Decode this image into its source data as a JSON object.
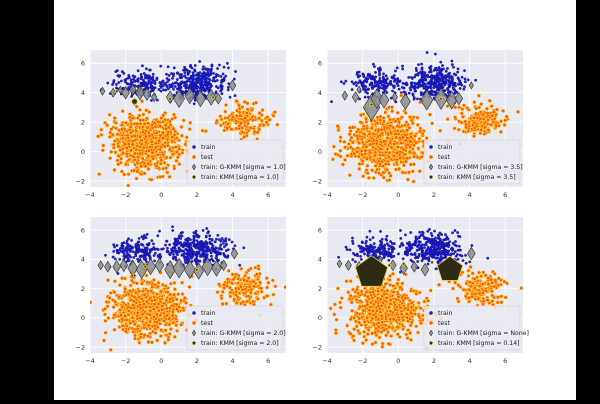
{
  "figure": {
    "background": "#ffffff",
    "letterbox": "#000000",
    "plot_background": "#eaeaf2",
    "grid_color": "#ffffff"
  },
  "colors": {
    "train": "#1f1fd6",
    "train_edge": "#0a0a7a",
    "test_face": "#ff5a00",
    "test_edge": "#ffd54a",
    "marker_fill": "#8c8c8c",
    "marker_edge": "#2a2a2a",
    "kmm_point": "#2e2a14",
    "kmm_edge": "#e0d040"
  },
  "chart_data": [
    {
      "type": "scatter",
      "id": "panel-top-left",
      "xlim": [
        -4,
        7
      ],
      "ylim": [
        -2.4,
        6.9
      ],
      "xticks": [
        -4,
        -2,
        0,
        2,
        4,
        6
      ],
      "yticks": [
        -2,
        0,
        2,
        4,
        6
      ],
      "grid": true,
      "legend_placement": "lower-right",
      "legend": [
        {
          "label": "train",
          "kind": "train"
        },
        {
          "label": "test",
          "kind": "test"
        },
        {
          "label": "train: G-KMM [sigma = 1.0]",
          "kind": "gkmm"
        },
        {
          "label": "train: KMM [sigma = 1.0]",
          "kind": "kmm"
        }
      ],
      "series": [
        {
          "name": "train",
          "kind": "train",
          "clusters": [
            {
              "cx": -1.3,
              "cy": 4.6,
              "sx": 0.75,
              "sy": 0.45,
              "n": 170
            },
            {
              "cx": 2.0,
              "cy": 4.7,
              "sx": 0.85,
              "sy": 0.55,
              "n": 330
            }
          ]
        },
        {
          "name": "test",
          "kind": "test",
          "clusters": [
            {
              "cx": -0.8,
              "cy": 0.6,
              "sx": 1.05,
              "sy": 0.95,
              "n": 700
            },
            {
              "cx": 4.6,
              "cy": 2.1,
              "sx": 0.7,
              "sy": 0.55,
              "n": 170
            }
          ]
        },
        {
          "name": "train: G-KMM [sigma = 1.0]",
          "kind": "gkmm",
          "shape": "diamond",
          "points": [
            [
              -3.3,
              4.1,
              0.22
            ],
            [
              -2.7,
              4.0,
              0.25
            ],
            [
              -2.3,
              4.2,
              0.2
            ],
            [
              -2.0,
              4.0,
              0.35
            ],
            [
              -1.6,
              4.2,
              0.3
            ],
            [
              -1.2,
              4.0,
              0.4
            ],
            [
              -0.8,
              3.9,
              0.35
            ],
            [
              -0.4,
              3.7,
              0.25
            ],
            [
              0.5,
              3.7,
              0.35
            ],
            [
              1.0,
              3.6,
              0.5
            ],
            [
              1.6,
              3.8,
              0.45
            ],
            [
              2.2,
              3.6,
              0.45
            ],
            [
              2.8,
              3.7,
              0.45
            ],
            [
              3.2,
              3.6,
              0.3
            ],
            [
              4.0,
              4.5,
              0.3
            ],
            [
              -1.5,
              3.4,
              0.2
            ]
          ]
        },
        {
          "name": "train: KMM [sigma = 1.0]",
          "kind": "kmm",
          "shape": "pentagon",
          "points": [
            [
              -1.5,
              3.4,
              0.18
            ],
            [
              0.5,
              3.6,
              0.06
            ],
            [
              2.9,
              3.7,
              0.06
            ],
            [
              -2.5,
              4.1,
              0.05
            ]
          ]
        }
      ]
    },
    {
      "type": "scatter",
      "id": "panel-top-right",
      "xlim": [
        -4,
        7
      ],
      "ylim": [
        -2.4,
        6.9
      ],
      "xticks": [
        -4,
        -2,
        0,
        2,
        4,
        6
      ],
      "yticks": [
        -2,
        0,
        2,
        4,
        6
      ],
      "grid": true,
      "legend_placement": "lower-right",
      "legend": [
        {
          "label": "train",
          "kind": "train"
        },
        {
          "label": "test",
          "kind": "test"
        },
        {
          "label": "train: G-KMM [sigma = 3.5]",
          "kind": "gkmm"
        },
        {
          "label": "train: KMM [sigma = 3.5]",
          "kind": "kmm"
        }
      ],
      "series": [
        {
          "name": "train",
          "kind": "train",
          "clusters": [
            {
              "cx": -1.3,
              "cy": 4.6,
              "sx": 0.75,
              "sy": 0.45,
              "n": 170
            },
            {
              "cx": 2.0,
              "cy": 4.7,
              "sx": 0.85,
              "sy": 0.55,
              "n": 330
            }
          ]
        },
        {
          "name": "test",
          "kind": "test",
          "clusters": [
            {
              "cx": -0.8,
              "cy": 0.6,
              "sx": 1.05,
              "sy": 0.95,
              "n": 700
            },
            {
              "cx": 4.6,
              "cy": 2.1,
              "sx": 0.7,
              "sy": 0.55,
              "n": 170
            }
          ]
        },
        {
          "name": "train: G-KMM [sigma = 3.5]",
          "kind": "gkmm",
          "shape": "diamond",
          "points": [
            [
              -3.0,
              3.8,
              0.25
            ],
            [
              -2.4,
              3.7,
              0.3
            ],
            [
              -1.5,
              3.0,
              0.75
            ],
            [
              -1.2,
              3.6,
              0.55
            ],
            [
              -0.8,
              3.5,
              0.45
            ],
            [
              0.4,
              3.4,
              0.45
            ],
            [
              1.6,
              3.5,
              0.55
            ],
            [
              2.4,
              3.6,
              0.6
            ],
            [
              3.0,
              3.5,
              0.5
            ],
            [
              3.4,
              3.6,
              0.35
            ],
            [
              4.1,
              4.5,
              0.2
            ],
            [
              -2.2,
              4.2,
              0.2
            ],
            [
              -0.2,
              3.7,
              0.25
            ]
          ]
        },
        {
          "name": "train: KMM [sigma = 3.5]",
          "kind": "kmm",
          "shape": "pentagon",
          "points": [
            [
              -1.5,
              3.2,
              0.06
            ],
            [
              2.4,
              3.6,
              0.05
            ]
          ]
        }
      ]
    },
    {
      "type": "scatter",
      "id": "panel-bottom-left",
      "xlim": [
        -4,
        7
      ],
      "ylim": [
        -2.4,
        6.9
      ],
      "xticks": [
        -4,
        -2,
        0,
        2,
        4,
        6
      ],
      "yticks": [
        -2,
        0,
        2,
        4,
        6
      ],
      "grid": true,
      "legend_placement": "lower-right",
      "legend": [
        {
          "label": "train",
          "kind": "train"
        },
        {
          "label": "test",
          "kind": "test"
        },
        {
          "label": "train: G-KMM [sigma = 2.0]",
          "kind": "gkmm"
        },
        {
          "label": "train: KMM [sigma = 2.0]",
          "kind": "kmm"
        }
      ],
      "series": [
        {
          "name": "train",
          "kind": "train",
          "clusters": [
            {
              "cx": -1.3,
              "cy": 4.6,
              "sx": 0.75,
              "sy": 0.45,
              "n": 170
            },
            {
              "cx": 2.0,
              "cy": 4.7,
              "sx": 0.85,
              "sy": 0.55,
              "n": 330
            }
          ]
        },
        {
          "name": "test",
          "kind": "test",
          "clusters": [
            {
              "cx": -0.8,
              "cy": 0.6,
              "sx": 1.05,
              "sy": 0.95,
              "n": 700
            },
            {
              "cx": 4.6,
              "cy": 2.1,
              "sx": 0.7,
              "sy": 0.55,
              "n": 170
            }
          ]
        },
        {
          "name": "train: G-KMM [sigma = 2.0]",
          "kind": "gkmm",
          "shape": "diamond",
          "points": [
            [
              -3.4,
              3.6,
              0.25
            ],
            [
              -3.0,
              3.5,
              0.3
            ],
            [
              -2.5,
              3.5,
              0.35
            ],
            [
              -2.1,
              3.6,
              0.35
            ],
            [
              -1.6,
              3.4,
              0.45
            ],
            [
              -1.1,
              3.3,
              0.5
            ],
            [
              -0.6,
              3.5,
              0.45
            ],
            [
              -0.1,
              3.6,
              0.4
            ],
            [
              0.5,
              3.3,
              0.5
            ],
            [
              1.0,
              3.4,
              0.55
            ],
            [
              1.6,
              3.3,
              0.5
            ],
            [
              2.1,
              3.2,
              0.45
            ],
            [
              2.6,
              3.5,
              0.5
            ],
            [
              3.1,
              3.4,
              0.45
            ],
            [
              3.5,
              3.6,
              0.3
            ],
            [
              4.1,
              4.4,
              0.3
            ]
          ]
        },
        {
          "name": "train: KMM [sigma = 2.0]",
          "kind": "kmm",
          "shape": "pentagon",
          "points": [
            [
              -1.5,
              2.9,
              0.07
            ],
            [
              -0.9,
              3.5,
              0.05
            ],
            [
              2.0,
              3.3,
              0.05
            ]
          ]
        }
      ]
    },
    {
      "type": "scatter",
      "id": "panel-bottom-right",
      "xlim": [
        -4,
        7
      ],
      "ylim": [
        -2.4,
        6.9
      ],
      "xticks": [
        -4,
        -2,
        0,
        2,
        4,
        6
      ],
      "yticks": [
        -2,
        0,
        2,
        4,
        6
      ],
      "grid": true,
      "legend_placement": "lower-right",
      "legend": [
        {
          "label": "train",
          "kind": "train"
        },
        {
          "label": "test",
          "kind": "test"
        },
        {
          "label": "train: G-KMM [sigma = None]",
          "kind": "gkmm"
        },
        {
          "label": "train: KMM [sigma = 0.14]",
          "kind": "kmm"
        }
      ],
      "series": [
        {
          "name": "train",
          "kind": "train",
          "clusters": [
            {
              "cx": -1.3,
              "cy": 4.6,
              "sx": 0.75,
              "sy": 0.45,
              "n": 170
            },
            {
              "cx": 2.0,
              "cy": 4.7,
              "sx": 0.85,
              "sy": 0.55,
              "n": 330
            }
          ]
        },
        {
          "name": "test",
          "kind": "test",
          "clusters": [
            {
              "cx": -0.8,
              "cy": 0.6,
              "sx": 1.05,
              "sy": 0.95,
              "n": 700
            },
            {
              "cx": 4.6,
              "cy": 2.1,
              "sx": 0.7,
              "sy": 0.55,
              "n": 170
            }
          ]
        },
        {
          "name": "train: G-KMM [sigma = None]",
          "kind": "gkmm",
          "shape": "diamond",
          "points": [
            [
              -3.3,
              3.7,
              0.22
            ],
            [
              -2.8,
              3.6,
              0.28
            ],
            [
              -2.2,
              3.5,
              0.3
            ],
            [
              -0.3,
              3.6,
              0.3
            ],
            [
              0.3,
              3.4,
              0.35
            ],
            [
              0.9,
              3.5,
              0.3
            ],
            [
              1.5,
              3.3,
              0.35
            ],
            [
              2.4,
              3.5,
              0.3
            ],
            [
              3.2,
              3.6,
              0.25
            ],
            [
              4.1,
              4.4,
              0.35
            ],
            [
              -1.0,
              4.0,
              0.2
            ]
          ]
        },
        {
          "name": "train: KMM [sigma = 0.14]",
          "kind": "kmm",
          "shape": "pentagon",
          "points": [
            [
              -1.5,
              3.1,
              0.95
            ],
            [
              2.9,
              3.3,
              0.75
            ],
            [
              0.3,
              3.7,
              0.06
            ],
            [
              -0.5,
              3.6,
              0.05
            ],
            [
              1.9,
              3.8,
              0.05
            ]
          ]
        }
      ]
    }
  ]
}
